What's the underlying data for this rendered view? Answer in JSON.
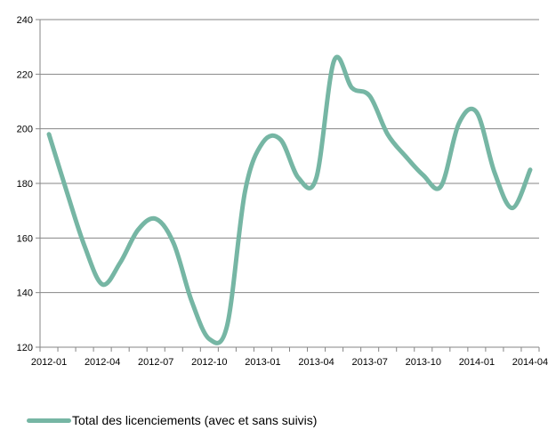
{
  "chart_data": {
    "type": "line",
    "title": "",
    "xlabel": "",
    "ylabel": "",
    "ylim": [
      120,
      240
    ],
    "y_ticks": [
      120,
      140,
      160,
      180,
      200,
      220,
      240
    ],
    "x_tick_labels": [
      "2012-01",
      "2012-04",
      "2012-07",
      "2012-10",
      "2013-01",
      "2013-04",
      "2013-07",
      "2013-10",
      "2014-01",
      "2014-04"
    ],
    "x": [
      "2012-01",
      "2012-02",
      "2012-03",
      "2012-04",
      "2012-05",
      "2012-06",
      "2012-07",
      "2012-08",
      "2012-09",
      "2012-10",
      "2012-11",
      "2012-12",
      "2013-01",
      "2013-02",
      "2013-03",
      "2013-04",
      "2013-05",
      "2013-06",
      "2013-07",
      "2013-08",
      "2013-09",
      "2013-10",
      "2013-11",
      "2013-12",
      "2014-01",
      "2014-02",
      "2014-03",
      "2014-04"
    ],
    "grid": "horizontal",
    "legend_position": "bottom-left",
    "series": [
      {
        "name": "Total des licenciements (avec et sans suivis)",
        "color": "#76b6a4",
        "values": [
          198,
          177,
          157,
          143,
          151,
          163,
          167,
          158,
          137,
          123,
          128,
          177,
          195,
          196,
          182,
          182,
          225,
          215,
          212,
          198,
          190,
          183,
          179,
          202,
          206,
          184,
          171,
          185
        ]
      }
    ]
  }
}
